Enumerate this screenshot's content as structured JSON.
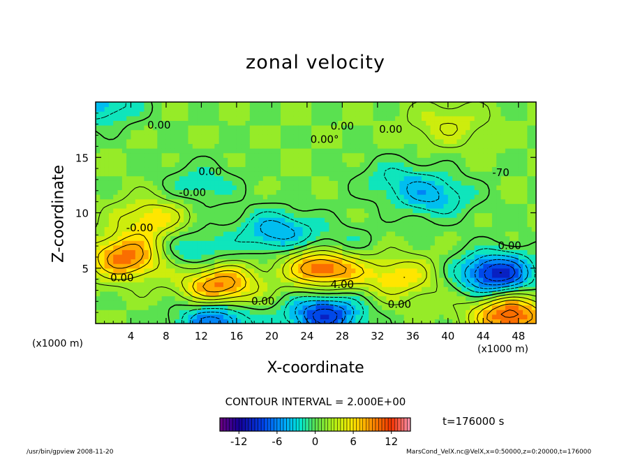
{
  "chart_data": {
    "type": "heatmap",
    "title": "zonal velocity",
    "xlabel": "X-coordinate",
    "ylabel": "Z-coordinate",
    "x_unit_left": "(x1000 m)",
    "x_unit_right": "(x1000 m)",
    "xlim": [
      0,
      50
    ],
    "ylim": [
      0,
      20
    ],
    "x_ticks": [
      "4",
      "8",
      "12",
      "16",
      "20",
      "24",
      "28",
      "32",
      "36",
      "40",
      "44",
      "48"
    ],
    "x_tick_values": [
      4,
      8,
      12,
      16,
      20,
      24,
      28,
      32,
      36,
      40,
      44,
      48
    ],
    "y_ticks": [
      "5",
      "10",
      "15"
    ],
    "y_tick_values": [
      5,
      10,
      15
    ],
    "contour_interval_text": "CONTOUR INTERVAL = 2.000E+00",
    "time_text": "t=176000 s",
    "colorbar": {
      "min": -15,
      "max": 15,
      "ticks": [
        "-12",
        "-6",
        "0",
        "6",
        "12"
      ],
      "tick_values": [
        -12,
        -6,
        0,
        6,
        12
      ]
    },
    "contour_labels": [
      {
        "text": "0.00",
        "x": 7.2,
        "z": 17.9
      },
      {
        "text": "0.00",
        "x": 28.0,
        "z": 17.8
      },
      {
        "text": "0.00",
        "x": 33.5,
        "z": 17.5
      },
      {
        "text": "0.00°",
        "x": 26.0,
        "z": 16.6
      },
      {
        "text": "0.00",
        "x": 13.0,
        "z": 13.7
      },
      {
        "text": "-0.00",
        "x": 11.0,
        "z": 11.8
      },
      {
        "text": "-0.00",
        "x": 5.0,
        "z": 8.6
      },
      {
        "text": "0.00",
        "x": 3.0,
        "z": 4.1
      },
      {
        "text": "0.00",
        "x": 19.0,
        "z": 2.0
      },
      {
        "text": "4.00",
        "x": 28.0,
        "z": 3.5
      },
      {
        "text": "0.00",
        "x": 34.5,
        "z": 1.7
      },
      {
        "text": "0.00",
        "x": 47.0,
        "z": 7.0
      },
      {
        "text": "-70",
        "x": 46.0,
        "z": 13.6
      }
    ],
    "features": [
      {
        "kind": "max",
        "x": 3.5,
        "z": 6.0,
        "value": 9
      },
      {
        "kind": "max",
        "x": 14.0,
        "z": 3.4,
        "value": 9
      },
      {
        "kind": "max",
        "x": 26.0,
        "z": 5.2,
        "value": 11
      },
      {
        "kind": "max",
        "x": 47.0,
        "z": 0.8,
        "value": 10
      },
      {
        "kind": "max",
        "x": 6.5,
        "z": 9.5,
        "value": 5
      },
      {
        "kind": "max",
        "x": 34.5,
        "z": 4.2,
        "value": 5
      },
      {
        "kind": "min",
        "x": 45.5,
        "z": 4.5,
        "value": -11
      },
      {
        "kind": "min",
        "x": 26.0,
        "z": 0.8,
        "value": -10
      },
      {
        "kind": "min",
        "x": 13.5,
        "z": 0.3,
        "value": -8
      },
      {
        "kind": "min",
        "x": 20.5,
        "z": 8.3,
        "value": -6
      },
      {
        "kind": "min",
        "x": 38.5,
        "z": 11.5,
        "value": -5
      },
      {
        "kind": "min",
        "x": 11.0,
        "z": 6.7,
        "value": -4
      },
      {
        "kind": "min",
        "x": 27.5,
        "z": 6.8,
        "value": -4
      },
      {
        "kind": "min",
        "x": 0.5,
        "z": 19.8,
        "value": -5
      },
      {
        "kind": "max",
        "x": 40.0,
        "z": 18.0,
        "value": 3
      },
      {
        "kind": "min",
        "x": 12.0,
        "z": 12.5,
        "value": -3
      },
      {
        "kind": "min",
        "x": 34.0,
        "z": 13.0,
        "value": -3
      }
    ]
  },
  "footer": {
    "left": "/usr/bin/gpview  2008-11-20",
    "right": "MarsCond_VelX.nc@VelX,x=0:50000,z=0:20000,t=176000"
  }
}
